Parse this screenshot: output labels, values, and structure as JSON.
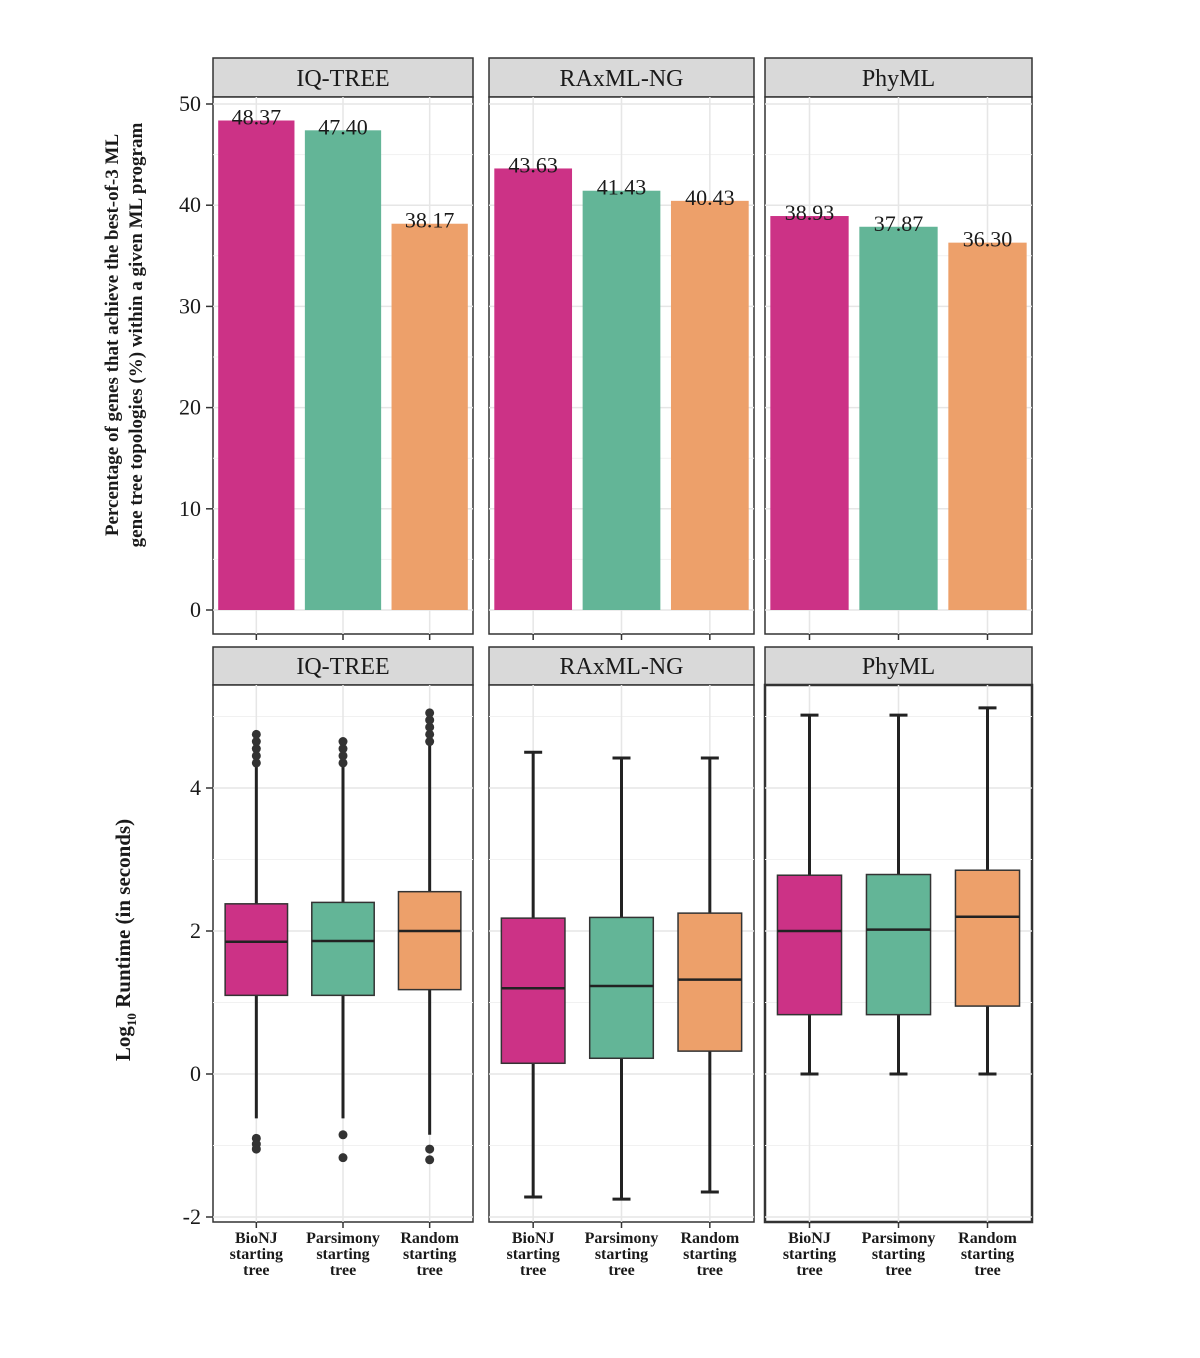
{
  "chart_data": [
    {
      "type": "bar",
      "ylabel_lines": [
        "Percentage of genes that achieve the best-of-3 ML",
        "gene tree topologies (%) within a given ML program"
      ],
      "ylim": [
        0,
        50
      ],
      "yticks": [
        "0",
        "10",
        "20",
        "30",
        "40",
        "50"
      ],
      "categories": [
        "BioNJ starting tree",
        "Parsimony starting tree",
        "Random starting tree"
      ],
      "facets": [
        {
          "name": "IQ-TREE",
          "values": [
            48.37,
            47.4,
            38.17
          ],
          "labels": [
            "48.37",
            "47.40",
            "38.17"
          ]
        },
        {
          "name": "RAxML-NG",
          "values": [
            43.63,
            41.43,
            40.43
          ],
          "labels": [
            "43.63",
            "41.43",
            "40.43"
          ]
        },
        {
          "name": "PhyML",
          "values": [
            38.93,
            37.87,
            36.3
          ],
          "labels": [
            "38.93",
            "37.87",
            "36.30"
          ]
        }
      ]
    },
    {
      "type": "box",
      "ylabel": "Runtime (in seconds)",
      "ylabel_prefix": "Log",
      "ylabel_sub": "10",
      "ylim": [
        -2,
        5.3
      ],
      "yticks": [
        "-2",
        "0",
        "2",
        "4"
      ],
      "category_lines": [
        [
          "BioNJ",
          "starting",
          "tree"
        ],
        [
          "Parsimony",
          "starting",
          "tree"
        ],
        [
          "Random",
          "starting",
          "tree"
        ]
      ],
      "facets": [
        {
          "name": "IQ-TREE",
          "boxes": [
            {
              "q1": 1.1,
              "median": 1.85,
              "q3": 2.38,
              "whisker_low": -0.62,
              "whisker_high": 4.3,
              "outliers_low": [
                -0.9,
                -0.98,
                -1.05
              ],
              "outliers_high": [
                4.35,
                4.45,
                4.55,
                4.65,
                4.75
              ]
            },
            {
              "q1": 1.1,
              "median": 1.86,
              "q3": 2.4,
              "whisker_low": -0.62,
              "whisker_high": 4.3,
              "outliers_low": [
                -0.85,
                -1.17
              ],
              "outliers_high": [
                4.35,
                4.45,
                4.55,
                4.65
              ]
            },
            {
              "q1": 1.18,
              "median": 2.0,
              "q3": 2.55,
              "whisker_low": -0.85,
              "whisker_high": 4.6,
              "outliers_low": [
                -1.05,
                -1.2
              ],
              "outliers_high": [
                4.65,
                4.75,
                4.85,
                4.95,
                5.05
              ]
            }
          ]
        },
        {
          "name": "RAxML-NG",
          "boxes": [
            {
              "q1": 0.15,
              "median": 1.2,
              "q3": 2.18,
              "whisker_low": -1.72,
              "whisker_high": 4.5,
              "outliers_low": [],
              "outliers_high": []
            },
            {
              "q1": 0.22,
              "median": 1.23,
              "q3": 2.19,
              "whisker_low": -1.75,
              "whisker_high": 4.42,
              "outliers_low": [],
              "outliers_high": []
            },
            {
              "q1": 0.32,
              "median": 1.32,
              "q3": 2.25,
              "whisker_low": -1.65,
              "whisker_high": 4.42,
              "outliers_low": [],
              "outliers_high": []
            }
          ]
        },
        {
          "name": "PhyML",
          "boxes": [
            {
              "q1": 0.83,
              "median": 2.0,
              "q3": 2.78,
              "whisker_low": 0.0,
              "whisker_high": 5.02,
              "outliers_low": [],
              "outliers_high": []
            },
            {
              "q1": 0.83,
              "median": 2.02,
              "q3": 2.79,
              "whisker_low": 0.0,
              "whisker_high": 5.02,
              "outliers_low": [],
              "outliers_high": []
            },
            {
              "q1": 0.95,
              "median": 2.2,
              "q3": 2.85,
              "whisker_low": 0.0,
              "whisker_high": 5.12,
              "outliers_low": [],
              "outliers_high": []
            }
          ]
        }
      ]
    }
  ],
  "colors": {
    "bionj": "#cc3286",
    "parsimony": "#63b597",
    "random": "#eda06a",
    "strip_bg": "#d9d9d9",
    "panel_border": "#333333",
    "grid": "#e6e6e6"
  }
}
